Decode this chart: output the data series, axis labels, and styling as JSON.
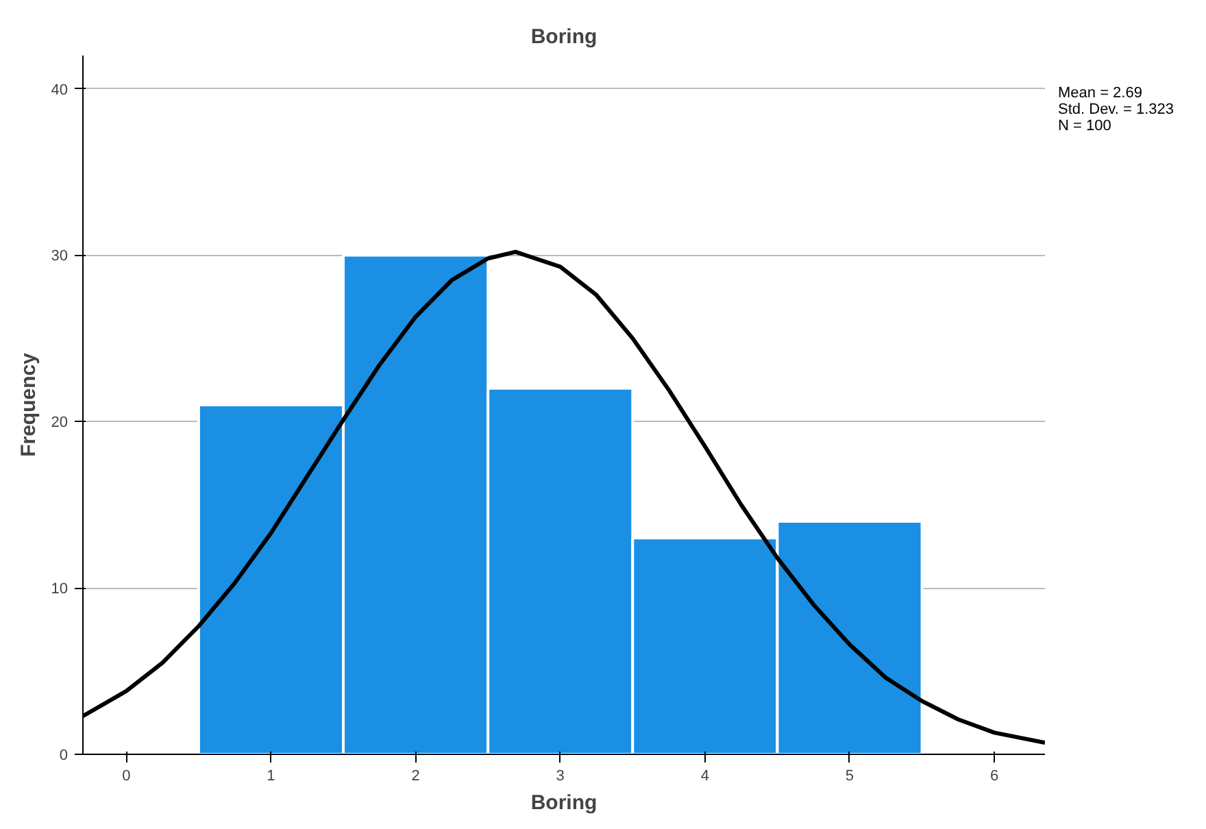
{
  "chart_data": {
    "type": "histogram",
    "title": "Boring",
    "xlabel": "Boring",
    "ylabel": "Frequency",
    "xlim": [
      -0.3,
      6.35
    ],
    "ylim": [
      0,
      42
    ],
    "xticks": [
      0,
      1,
      2,
      3,
      4,
      5,
      6
    ],
    "yticks": [
      0,
      10,
      20,
      30,
      40
    ],
    "grid": "y",
    "series": [
      {
        "color": "#1a8fe3",
        "bins": [
          0.5,
          1.5,
          2.5,
          3.5,
          4.5,
          5.5
        ],
        "values": [
          21,
          30,
          22,
          13,
          14
        ]
      },
      {
        "type": "line",
        "color": "#000000",
        "x": [
          -0.3,
          0,
          0.25,
          0.5,
          0.75,
          1,
          1.25,
          1.5,
          1.75,
          2,
          2.25,
          2.5,
          2.69,
          3,
          3.25,
          3.5,
          3.75,
          4,
          4.25,
          4.5,
          4.75,
          5,
          5.25,
          5.5,
          5.75,
          6,
          6.35
        ],
        "values": [
          2.3,
          3.8,
          5.5,
          7.7,
          10.3,
          13.3,
          16.7,
          20.1,
          23.4,
          26.3,
          28.5,
          29.8,
          30.2,
          29.3,
          27.6,
          25.0,
          21.9,
          18.5,
          15.0,
          11.8,
          9.0,
          6.6,
          4.6,
          3.2,
          2.1,
          1.3,
          0.7
        ]
      }
    ],
    "annotations": [
      "Mean = 2.69",
      "Std. Dev. = 1.323",
      "N = 100"
    ]
  }
}
